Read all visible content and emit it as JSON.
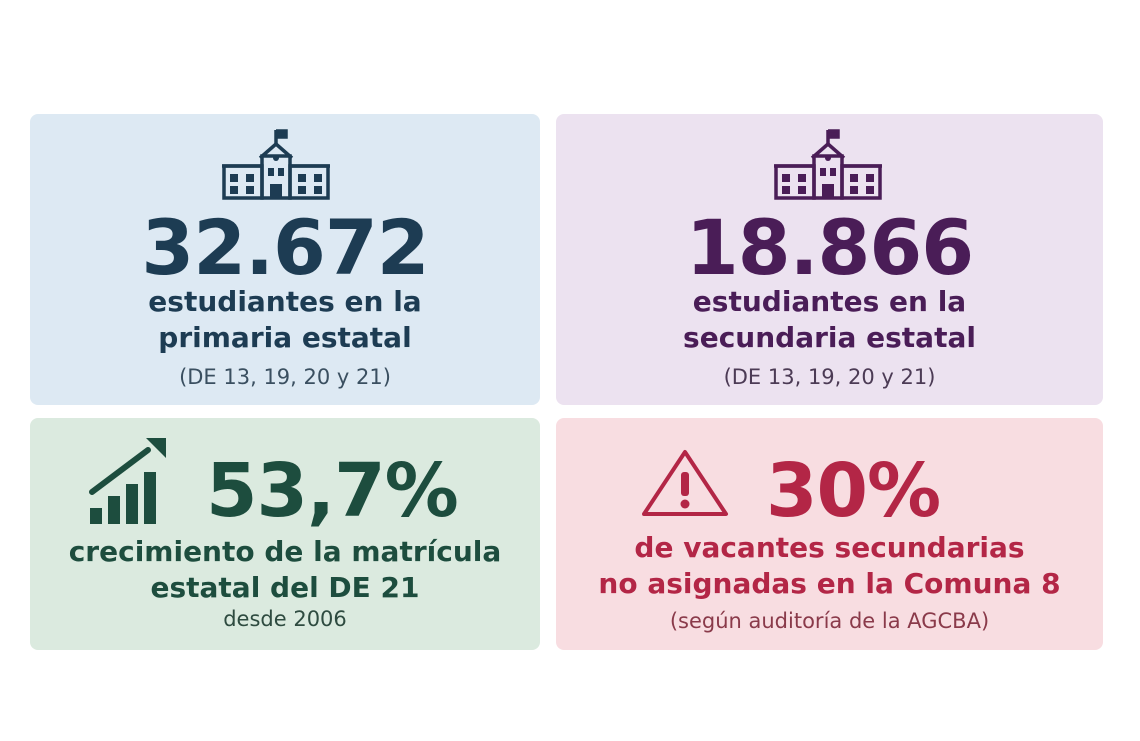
{
  "cards": {
    "primaria": {
      "number": "32.672",
      "line1": "estudiantes en la",
      "line2": "primaria estatal",
      "note": "(DE 13, 19, 20 y 21)",
      "icon": "school-icon",
      "color": "#1d3c53",
      "background": "#dde9f3"
    },
    "secundaria": {
      "number": "18.866",
      "line1": "estudiantes en la",
      "line2": "secundaria estatal",
      "note": "(DE 13, 19, 20 y 21)",
      "icon": "school-icon",
      "color": "#4a1d57",
      "background": "#ece2f0"
    },
    "crecimiento": {
      "number": "53,7%",
      "line1": "crecimiento de la matrícula",
      "line2": "estatal del DE 21",
      "note": "desde 2006",
      "icon": "growth-chart-icon",
      "color": "#1d4d3e",
      "background": "#dbeadf"
    },
    "vacantes": {
      "number": "30%",
      "line1": "de vacantes secundarias",
      "line2": "no asignadas en la Comuna 8",
      "note": "(según auditoría de la AGCBA)",
      "icon": "warning-icon",
      "color": "#b32646",
      "background": "#f8dde1"
    }
  }
}
